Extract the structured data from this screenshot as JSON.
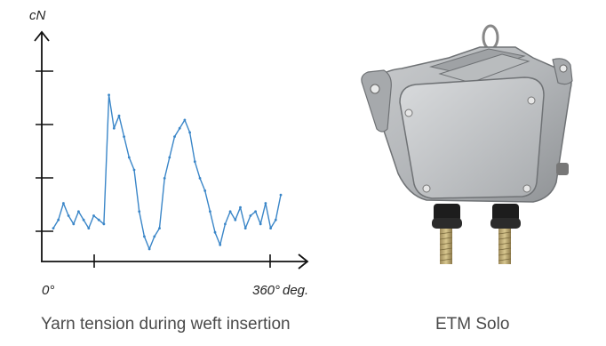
{
  "chart_data": {
    "type": "line",
    "ylabel": "cN",
    "xlabel": "deg.",
    "x_tick_labels": [
      "0°",
      "360°"
    ],
    "xlim": [
      0,
      360
    ],
    "ylim": [
      0,
      5
    ],
    "grid": false,
    "series": [
      {
        "color": "#3a86c8",
        "x": [
          0,
          8,
          16,
          24,
          32,
          40,
          48,
          56,
          64,
          72,
          80,
          88,
          96,
          104,
          112,
          120,
          128,
          136,
          144,
          152,
          160,
          168,
          176,
          184,
          192,
          200,
          208,
          216,
          224,
          232,
          240,
          248,
          256,
          264,
          272,
          280,
          288,
          296,
          304,
          312,
          320,
          328,
          336,
          344,
          352,
          360
        ],
        "values": [
          0.8,
          1.0,
          1.4,
          1.1,
          0.9,
          1.2,
          1.0,
          0.8,
          1.1,
          1.0,
          0.9,
          4.0,
          3.2,
          3.5,
          3.0,
          2.5,
          2.2,
          1.2,
          0.6,
          0.3,
          0.6,
          0.8,
          2.0,
          2.5,
          3.0,
          3.2,
          3.4,
          3.1,
          2.4,
          2.0,
          1.7,
          1.2,
          0.7,
          0.4,
          0.9,
          1.2,
          1.0,
          1.3,
          0.8,
          1.1,
          1.2,
          0.9,
          1.4,
          0.8,
          1.0,
          1.6
        ]
      }
    ]
  },
  "device": {
    "caption": "ETM Solo"
  },
  "captions": {
    "chart": "Yarn tension during weft insertion",
    "device": "ETM Solo"
  }
}
